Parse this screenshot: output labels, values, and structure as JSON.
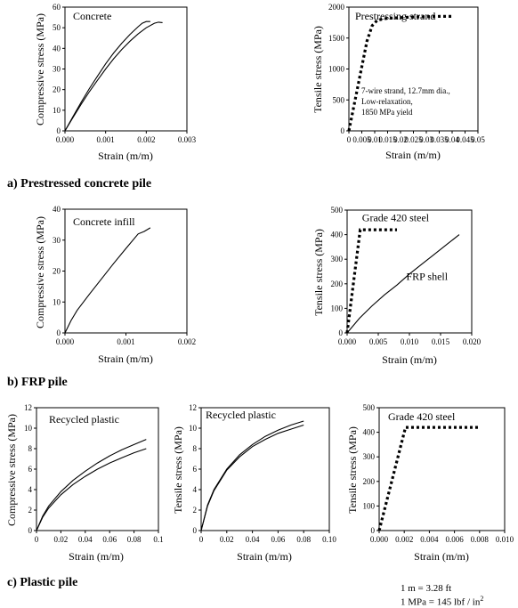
{
  "sections": [
    {
      "label": "a) Prestressed concrete pile"
    },
    {
      "label": "b) FRP pile"
    },
    {
      "label": "c) Plastic pile"
    }
  ],
  "footnote": {
    "line1": "1 m = 3.28 ft",
    "line2_prefix": "1 MPa = 145 lbf / in",
    "line2_sup": "2"
  },
  "chart_data": [
    {
      "id": "concrete",
      "type": "line",
      "title": "Concrete",
      "xlabel": "Strain (m/m)",
      "ylabel": "Compressive stress (MPa)",
      "xlim": [
        0,
        0.003
      ],
      "ylim": [
        0,
        60
      ],
      "xticks": [
        0,
        0.001,
        0.002,
        0.003
      ],
      "xtick_labels": [
        "0.000",
        "0.001",
        "0.002",
        "0.003"
      ],
      "yticks": [
        0,
        10,
        20,
        30,
        40,
        50,
        60
      ],
      "ytick_labels": [
        "0",
        "10",
        "20",
        "30",
        "40",
        "50",
        "60"
      ],
      "series": [
        {
          "style": "solid",
          "x": [
            0,
            0.0002,
            0.0004,
            0.0006,
            0.0008,
            0.001,
            0.0012,
            0.0014,
            0.0016,
            0.0018,
            0.0019,
            0.002,
            0.0021
          ],
          "y": [
            0,
            7,
            14,
            20.5,
            26.5,
            32.5,
            37.8,
            42.5,
            46.8,
            50.5,
            52.2,
            53,
            53
          ]
        },
        {
          "style": "solid",
          "x": [
            0,
            0.0002,
            0.0004,
            0.0006,
            0.0008,
            0.001,
            0.0012,
            0.0014,
            0.0016,
            0.0018,
            0.002,
            0.0022,
            0.0023,
            0.0024
          ],
          "y": [
            0,
            6.5,
            13,
            19,
            24.5,
            30,
            35,
            39.5,
            43.5,
            47,
            50,
            52.2,
            52.7,
            52.5
          ]
        }
      ]
    },
    {
      "id": "strand",
      "type": "line",
      "title": "Prestressing strand",
      "annotation": [
        "7-wire strand, 12.7mm dia.,",
        "Low-relaxation,",
        "1850 MPa yield"
      ],
      "xlabel": "Strain (m/m)",
      "ylabel": "Tensile stress (MPa)",
      "xlim": [
        0,
        0.05
      ],
      "ylim": [
        0,
        2000
      ],
      "xticks": [
        0,
        0.005,
        0.01,
        0.015,
        0.02,
        0.025,
        0.03,
        0.035,
        0.04,
        0.045,
        0.05
      ],
      "xtick_labels": [
        "0",
        "0.005",
        "0.01",
        "0.015",
        "0.02",
        "0.025",
        "0.03",
        "0.035",
        "0.04",
        "0.045",
        "0.05"
      ],
      "yticks": [
        0,
        500,
        1000,
        1500,
        2000
      ],
      "ytick_labels": [
        "0",
        "500",
        "1000",
        "1500",
        "2000"
      ],
      "series": [
        {
          "style": "dotted",
          "x": [
            0,
            0.007,
            0.009,
            0.011,
            0.015,
            0.02,
            0.025,
            0.03,
            0.035,
            0.04
          ],
          "y": [
            0,
            1450,
            1700,
            1790,
            1820,
            1830,
            1840,
            1845,
            1850,
            1850
          ]
        }
      ]
    },
    {
      "id": "concrete-infill",
      "type": "line",
      "title": "Concrete infill",
      "xlabel": "Strain (m/m)",
      "ylabel": "Compressive stress (MPa)",
      "xlim": [
        0,
        0.002
      ],
      "ylim": [
        0,
        40
      ],
      "xticks": [
        0,
        0.001,
        0.002
      ],
      "xtick_labels": [
        "0.000",
        "0.001",
        "0.002"
      ],
      "yticks": [
        0,
        10,
        20,
        30,
        40
      ],
      "ytick_labels": [
        "0",
        "10",
        "20",
        "30",
        "40"
      ],
      "series": [
        {
          "style": "solid",
          "x": [
            0,
            0.0001,
            0.0002,
            0.0004,
            0.0006,
            0.0008,
            0.001,
            0.0012,
            0.0013,
            0.0014
          ],
          "y": [
            0,
            4,
            7.3,
            12.5,
            17.5,
            22.5,
            27.3,
            32,
            32.8,
            34
          ]
        }
      ]
    },
    {
      "id": "frp",
      "type": "line",
      "xlabel": "Strain (m/m)",
      "ylabel": "Tensile stress (MPa)",
      "xlim": [
        0,
        0.02
      ],
      "ylim": [
        0,
        500
      ],
      "xticks": [
        0,
        0.005,
        0.01,
        0.015,
        0.02
      ],
      "xtick_labels": [
        "0.000",
        "0.005",
        "0.010",
        "0.015",
        "0.020"
      ],
      "yticks": [
        0,
        100,
        200,
        300,
        400,
        500
      ],
      "ytick_labels": [
        "0",
        "100",
        "200",
        "300",
        "400",
        "500"
      ],
      "series": [
        {
          "name": "Grade 420 steel",
          "style": "dotted",
          "x": [
            0,
            0.0021,
            0.003,
            0.004,
            0.005,
            0.006,
            0.007,
            0.008
          ],
          "y": [
            0,
            420,
            420,
            420,
            420,
            420,
            420,
            420
          ]
        },
        {
          "name": "FRP shell",
          "style": "solid",
          "x": [
            0,
            0.002,
            0.004,
            0.006,
            0.008,
            0.01,
            0.012,
            0.014,
            0.016,
            0.018
          ],
          "y": [
            0,
            60,
            110,
            155,
            195,
            240,
            280,
            320,
            360,
            400
          ]
        }
      ],
      "labels": [
        {
          "text": "Grade 420 steel",
          "x": 0.0024,
          "y": 455
        },
        {
          "text": "FRP shell",
          "x": 0.0095,
          "y": 215
        }
      ]
    },
    {
      "id": "plastic-comp",
      "type": "line",
      "title": "Recycled plastic",
      "xlabel": "Strain (m/m)",
      "ylabel": "Compressive stress (MPa)",
      "xlim": [
        0,
        0.1
      ],
      "ylim": [
        0,
        12
      ],
      "xticks": [
        0,
        0.02,
        0.04,
        0.06,
        0.08,
        0.1
      ],
      "xtick_labels": [
        "0",
        "0.02",
        "0.04",
        "0.06",
        "0.08",
        "0.1"
      ],
      "yticks": [
        0,
        2,
        4,
        6,
        8,
        10,
        12
      ],
      "ytick_labels": [
        "0",
        "2",
        "4",
        "6",
        "8",
        "10",
        "12"
      ],
      "series": [
        {
          "style": "solid",
          "x": [
            0,
            0.005,
            0.01,
            0.02,
            0.03,
            0.04,
            0.05,
            0.06,
            0.07,
            0.08,
            0.09
          ],
          "y": [
            0,
            1.4,
            2.4,
            3.8,
            4.9,
            5.8,
            6.6,
            7.3,
            7.9,
            8.4,
            8.9
          ]
        },
        {
          "style": "solid",
          "x": [
            0,
            0.005,
            0.01,
            0.02,
            0.03,
            0.04,
            0.05,
            0.06,
            0.07,
            0.08,
            0.09
          ],
          "y": [
            0,
            1.3,
            2.2,
            3.5,
            4.5,
            5.3,
            6.0,
            6.6,
            7.1,
            7.6,
            8.0
          ]
        }
      ]
    },
    {
      "id": "plastic-tens",
      "type": "line",
      "title": "Recycled plastic",
      "xlabel": "Strain (m/m)",
      "ylabel": "Tensile stress (MPa)",
      "xlim": [
        0,
        0.1
      ],
      "ylim": [
        0,
        12
      ],
      "xticks": [
        0,
        0.02,
        0.04,
        0.06,
        0.08,
        0.1
      ],
      "xtick_labels": [
        "0",
        "0.02",
        "0.04",
        "0.06",
        "0.08",
        "0.10"
      ],
      "yticks": [
        0,
        2,
        4,
        6,
        8,
        10,
        12
      ],
      "ytick_labels": [
        "0",
        "2",
        "4",
        "6",
        "8",
        "10",
        "12"
      ],
      "series": [
        {
          "style": "solid",
          "x": [
            0,
            0.005,
            0.01,
            0.02,
            0.03,
            0.04,
            0.05,
            0.06,
            0.07,
            0.08
          ],
          "y": [
            0,
            2.5,
            4.0,
            6.0,
            7.4,
            8.4,
            9.2,
            9.8,
            10.3,
            10.7
          ]
        },
        {
          "style": "solid",
          "x": [
            0,
            0.005,
            0.01,
            0.02,
            0.03,
            0.04,
            0.05,
            0.06,
            0.07,
            0.08
          ],
          "y": [
            0,
            2.4,
            3.9,
            5.9,
            7.2,
            8.2,
            8.9,
            9.5,
            9.9,
            10.3
          ]
        }
      ]
    },
    {
      "id": "steel-plastic",
      "type": "line",
      "title": "Grade 420 steel",
      "xlabel": "Strain (m/m)",
      "ylabel": "Tensile stress (MPa)",
      "xlim": [
        0,
        0.01
      ],
      "ylim": [
        0,
        500
      ],
      "xticks": [
        0,
        0.002,
        0.004,
        0.006,
        0.008,
        0.01
      ],
      "xtick_labels": [
        "0.000",
        "0.002",
        "0.004",
        "0.006",
        "0.008",
        "0.010"
      ],
      "yticks": [
        0,
        100,
        200,
        300,
        400,
        500
      ],
      "ytick_labels": [
        "0",
        "100",
        "200",
        "300",
        "400",
        "500"
      ],
      "series": [
        {
          "style": "dotted",
          "x": [
            0,
            0.0021,
            0.003,
            0.004,
            0.005,
            0.006,
            0.007,
            0.008
          ],
          "y": [
            0,
            420,
            420,
            420,
            420,
            420,
            420,
            420
          ]
        }
      ]
    }
  ]
}
